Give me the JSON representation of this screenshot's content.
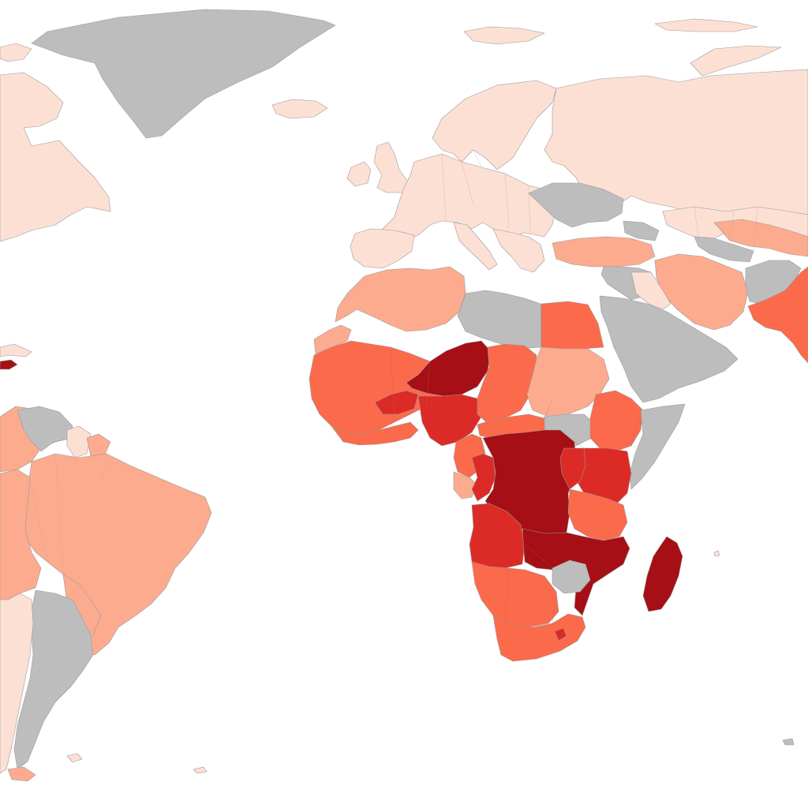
{
  "map": {
    "type": "choropleth",
    "palette": {
      "no_data": "#bdbdbd",
      "class_1": "#fde0d4",
      "class_2": "#fcab8e",
      "class_3": "#fb6a4a",
      "class_4": "#dc2b26",
      "class_5": "#a50f15"
    }
  }
}
